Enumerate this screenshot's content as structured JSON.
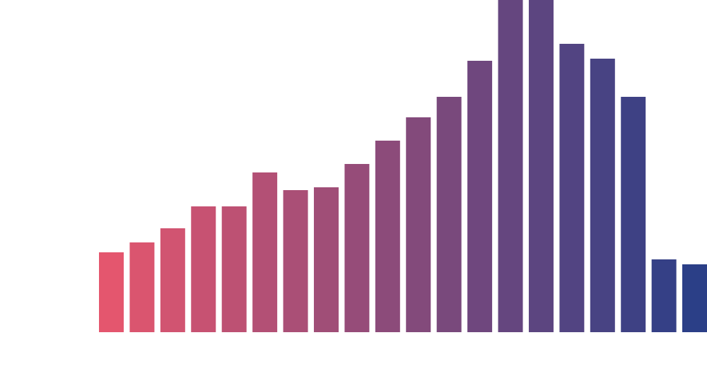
{
  "chart_data": {
    "type": "bar",
    "categories": [
      null,
      null,
      null,
      null,
      null,
      null,
      null,
      null,
      null,
      null,
      null,
      null,
      null,
      null,
      null,
      null,
      null,
      null,
      null,
      null
    ],
    "values": [
      113,
      127,
      147,
      178,
      178,
      226,
      201,
      205,
      238,
      271,
      304,
      333,
      384,
      470,
      470,
      408,
      387,
      333,
      103,
      96
    ],
    "gradient": [
      "#e4566e",
      "#2b3f87"
    ],
    "ylim": [
      0,
      470
    ],
    "grid": false
  }
}
